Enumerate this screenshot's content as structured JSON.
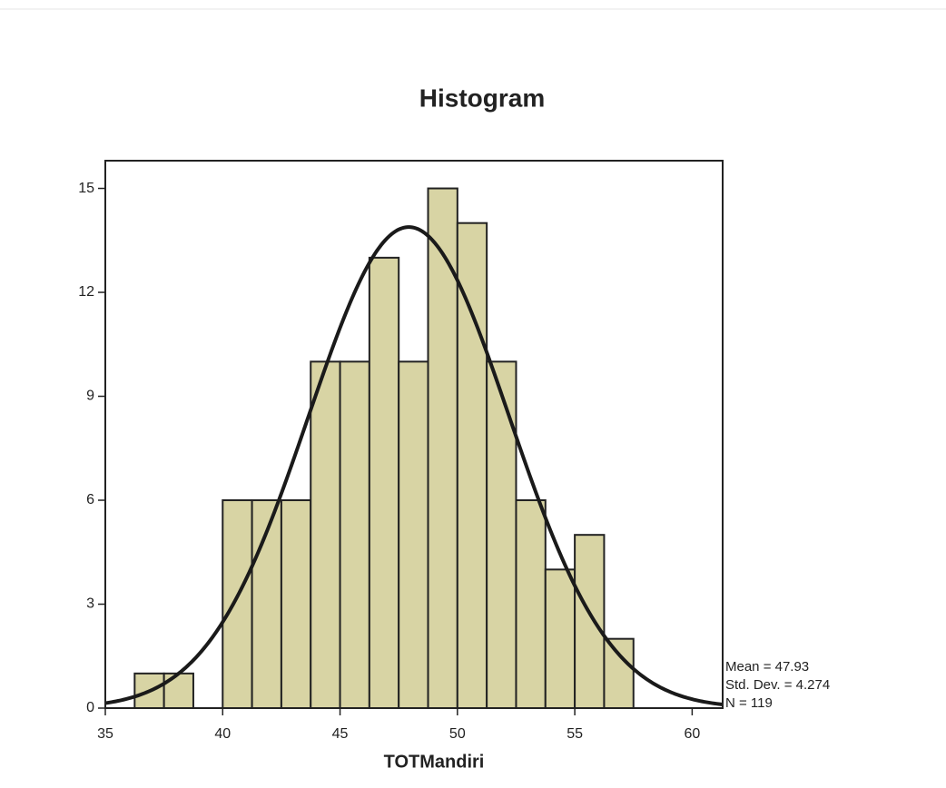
{
  "chart_data": {
    "type": "histogram",
    "title": "Histogram",
    "x_label": "TOTMandiri",
    "bins": [
      36.25,
      37.5,
      38.75,
      40,
      41.25,
      42.5,
      43.75,
      45,
      46.25,
      47.5,
      48.75,
      50,
      51.25,
      52.5,
      53.75,
      55,
      56.25,
      57.5
    ],
    "values": [
      1,
      1,
      0,
      6,
      6,
      6,
      10,
      10,
      13,
      10,
      15,
      14,
      10,
      6,
      4,
      5,
      2
    ],
    "color": "#d8d4a4",
    "xlim": [
      35,
      61.3
    ],
    "xticks": [
      35,
      40,
      45,
      50,
      55,
      60
    ],
    "ylim": [
      0,
      15.8
    ],
    "yticks": [
      0,
      3,
      6,
      9,
      12,
      15
    ],
    "normal_curve": true,
    "stats": [
      {
        "value": 47.93,
        "label": "Mean = 47.93"
      },
      {
        "value": 4.274,
        "label": "Std. Dev. = 4.274"
      },
      {
        "value": 119,
        "label": "N = 119"
      }
    ]
  }
}
